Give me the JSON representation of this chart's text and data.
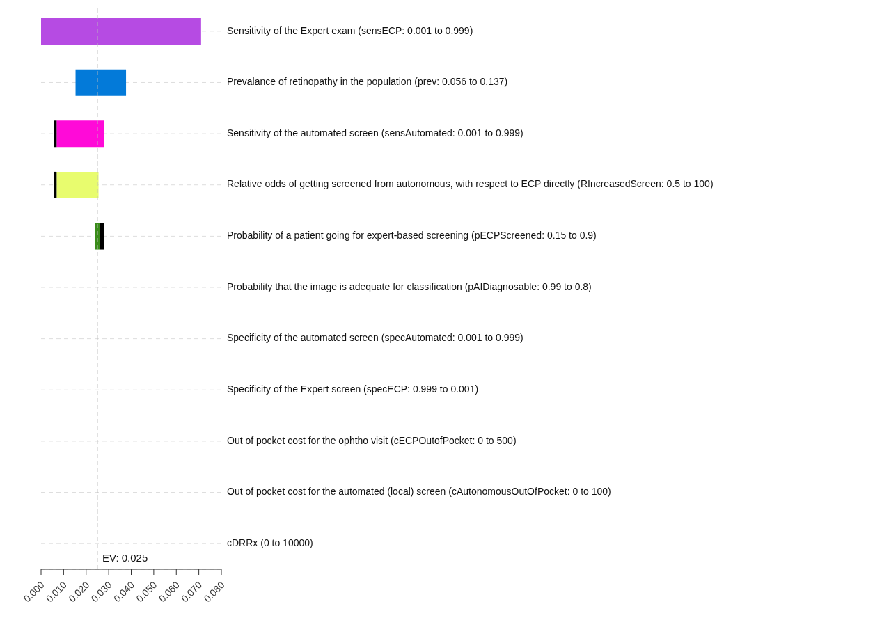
{
  "chart_data": {
    "type": "bar",
    "orientation": "horizontal",
    "categories": [
      "Sensitivity of the Expert exam (sensECP: 0.001 to 0.999)",
      "Prevalance of retinopathy in the population (prev: 0.056 to 0.137)",
      "Sensitivity of the automated screen (sensAutomated: 0.001 to 0.999)",
      "Relative odds of getting screened from autonomous, with respect to ECP directly (RIncreasedScreen: 0.5 to 100)",
      "Probability of a patient going for expert-based screening (pECPScreened: 0.15 to 0.9)",
      "Probability that the image is adequate for classification (pAIDiagnosable: 0.99 to 0.8)",
      "Specificity of the automated screen (specAutomated: 0.001 to 0.999)",
      "Specificity of the Expert screen (specECP: 0.999 to 0.001)",
      "Out of pocket cost for the ophtho visit (cECPOutofPocket: 0 to 500)",
      "Out of pocket cost for the automated (local) screen (cAutonomousOutOfPocket: 0 to 100)",
      "cDRRx (0 to 10000)"
    ],
    "series": [
      {
        "colors": [
          "#b64be3",
          "#037ad9",
          "#ff0ad8",
          "#e8fc6e",
          "#3a8c1a",
          null,
          null,
          null,
          null,
          null,
          null
        ],
        "base": [
          0,
          0.0153,
          0.0069,
          0.0069,
          0.024,
          null,
          null,
          null,
          null,
          null,
          null
        ],
        "values": [
          0.071,
          0.0224,
          0.0212,
          0.0186,
          0.002,
          null,
          null,
          null,
          null,
          null,
          null
        ]
      },
      {
        "color": "#000000",
        "base": [
          null,
          null,
          0.0057,
          0.0057,
          0.026,
          null,
          null,
          null,
          null,
          null,
          null
        ],
        "values": [
          null,
          null,
          0.0012,
          0.0012,
          0.0018,
          null,
          null,
          null,
          null,
          null,
          null
        ]
      }
    ],
    "xlim": [
      0,
      0.08
    ],
    "xticks": [
      {
        "value": 0,
        "label": "0.000"
      },
      {
        "value": 0.01,
        "label": "0.010"
      },
      {
        "value": 0.02,
        "label": "0.020"
      },
      {
        "value": 0.03,
        "label": "0.030"
      },
      {
        "value": 0.04,
        "label": "0.040"
      },
      {
        "value": 0.05,
        "label": "0.050"
      },
      {
        "value": 0.06,
        "label": "0.060"
      },
      {
        "value": 0.07,
        "label": "0.070"
      },
      {
        "value": 0.08,
        "label": "0.080"
      }
    ],
    "ref_lines": [
      {
        "axis": "x",
        "value": 0.025,
        "label": "EV: 0.025",
        "color": "#bbbbbb",
        "line_style": "dashed"
      }
    ],
    "grid": "y",
    "legend": false
  }
}
